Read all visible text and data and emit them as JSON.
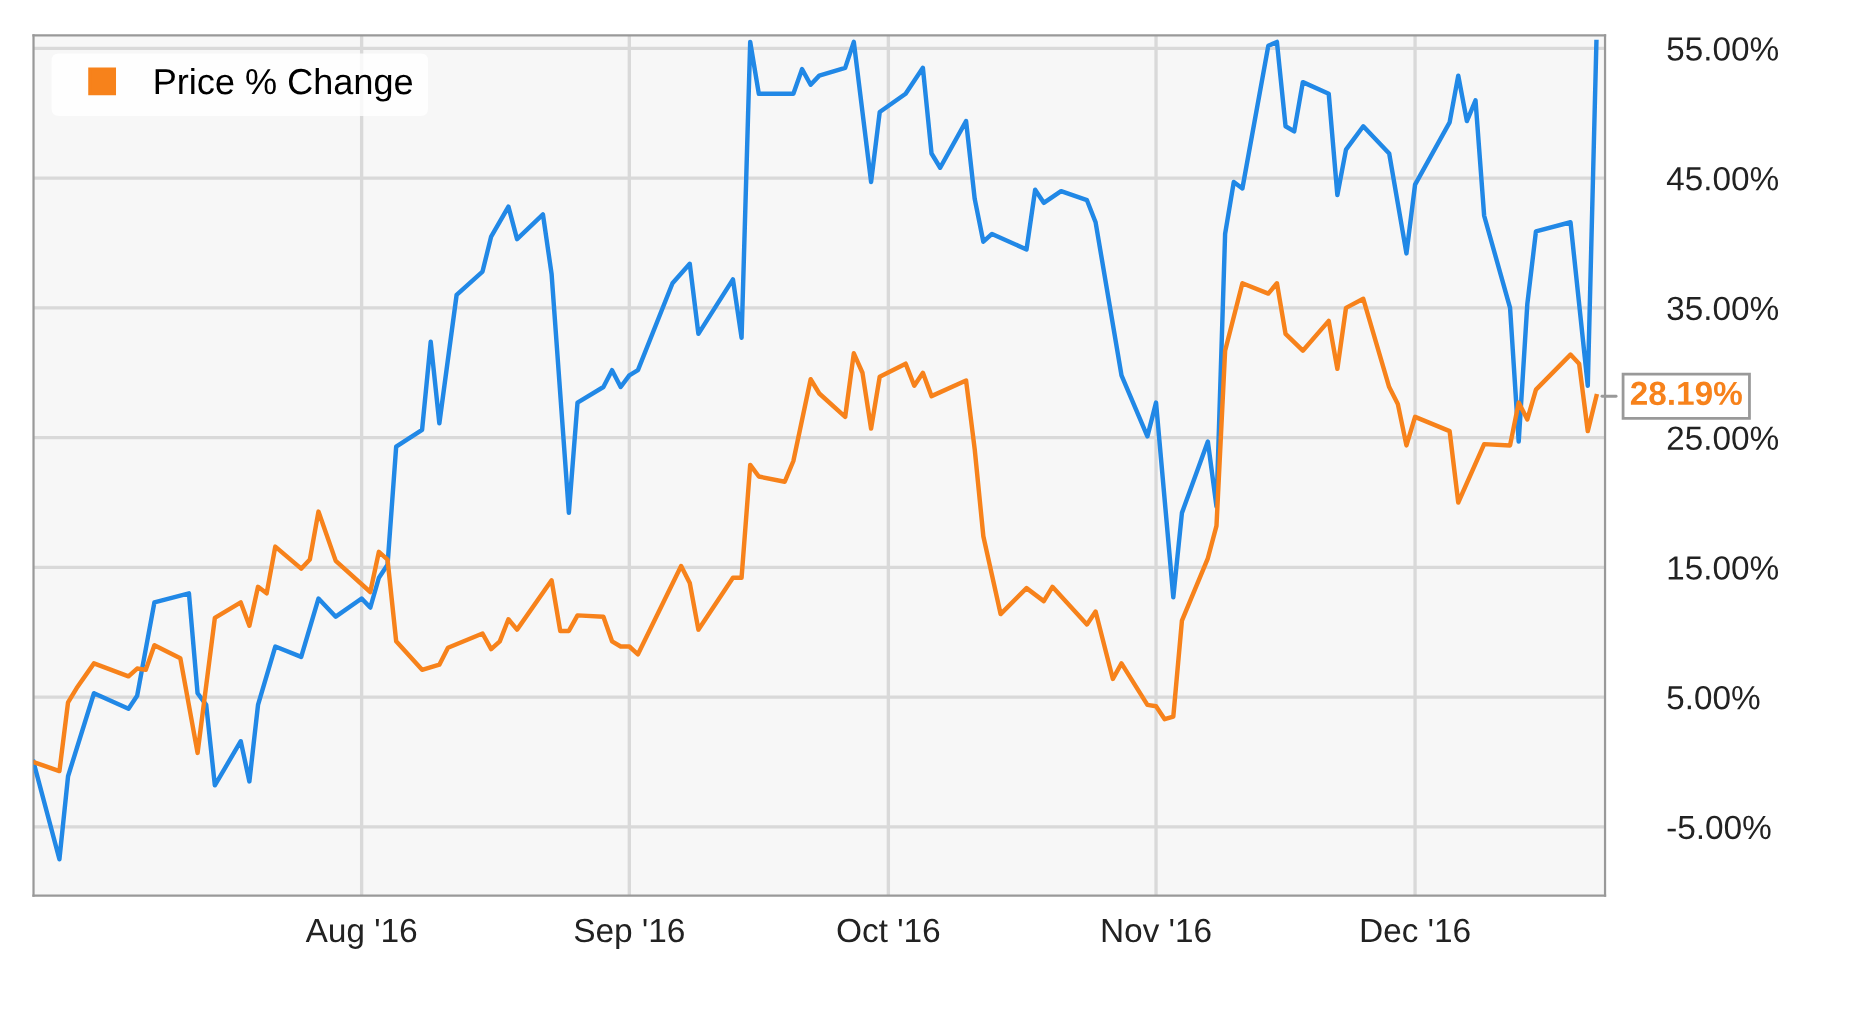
{
  "chart_data": {
    "type": "line",
    "series": [
      {
        "color": "#2188e6",
        "x": [
          "2016-06-24",
          "2016-06-27",
          "2016-06-28",
          "2016-07-01",
          "2016-07-05",
          "2016-07-06",
          "2016-07-08",
          "2016-07-12",
          "2016-07-13",
          "2016-07-14",
          "2016-07-15",
          "2016-07-18",
          "2016-07-19",
          "2016-07-20",
          "2016-07-22",
          "2016-07-25",
          "2016-07-27",
          "2016-07-29",
          "2016-08-01",
          "2016-08-02",
          "2016-08-03",
          "2016-08-04",
          "2016-08-05",
          "2016-08-08",
          "2016-08-09",
          "2016-08-10",
          "2016-08-12",
          "2016-08-15",
          "2016-08-16",
          "2016-08-18",
          "2016-08-19",
          "2016-08-22",
          "2016-08-23",
          "2016-08-25",
          "2016-08-26",
          "2016-08-29",
          "2016-08-30",
          "2016-08-31",
          "2016-09-01",
          "2016-09-02",
          "2016-09-06",
          "2016-09-08",
          "2016-09-09",
          "2016-09-13",
          "2016-09-14",
          "2016-09-15",
          "2016-09-16",
          "2016-09-20",
          "2016-09-21",
          "2016-09-22",
          "2016-09-23",
          "2016-09-26",
          "2016-09-27",
          "2016-09-29",
          "2016-09-30",
          "2016-10-03",
          "2016-10-05",
          "2016-10-06",
          "2016-10-07",
          "2016-10-10",
          "2016-10-11",
          "2016-10-12",
          "2016-10-13",
          "2016-10-17",
          "2016-10-18",
          "2016-10-19",
          "2016-10-21",
          "2016-10-24",
          "2016-10-25",
          "2016-10-28",
          "2016-10-31",
          "2016-11-01",
          "2016-11-03",
          "2016-11-04",
          "2016-11-07",
          "2016-11-08",
          "2016-11-09",
          "2016-11-10",
          "2016-11-11",
          "2016-11-14",
          "2016-11-15",
          "2016-11-16",
          "2016-11-17",
          "2016-11-18",
          "2016-11-21",
          "2016-11-22",
          "2016-11-23",
          "2016-11-25",
          "2016-11-28",
          "2016-11-30",
          "2016-12-01",
          "2016-12-05",
          "2016-12-06",
          "2016-12-07",
          "2016-12-08",
          "2016-12-09",
          "2016-12-12",
          "2016-12-13",
          "2016-12-14",
          "2016-12-15",
          "2016-12-19",
          "2016-12-21",
          "2016-12-22"
        ],
        "values": [
          0.0,
          -7.5,
          -1.1,
          5.3,
          4.1,
          5.1,
          12.3,
          13.0,
          5.3,
          4.4,
          -1.8,
          1.6,
          -1.5,
          4.4,
          8.9,
          8.1,
          12.6,
          11.2,
          12.6,
          11.9,
          14.2,
          15.2,
          24.3,
          25.6,
          32.4,
          26.1,
          36.0,
          37.8,
          40.5,
          42.8,
          40.3,
          42.2,
          37.6,
          19.2,
          27.7,
          28.9,
          30.2,
          28.9,
          29.8,
          30.2,
          36.9,
          38.4,
          33.0,
          37.2,
          32.7,
          55.5,
          51.5,
          51.5,
          53.4,
          52.2,
          52.9,
          53.5,
          55.5,
          44.7,
          50.1,
          51.5,
          53.5,
          46.9,
          45.8,
          49.4,
          43.4,
          40.1,
          40.7,
          39.5,
          44.1,
          43.1,
          44.0,
          43.3,
          41.6,
          29.8,
          25.1,
          27.7,
          12.7,
          19.2,
          24.7,
          19.7,
          40.7,
          44.7,
          44.2,
          55.2,
          55.5,
          49.0,
          48.6,
          52.4,
          51.5,
          43.7,
          47.2,
          49.0,
          46.9,
          39.2,
          44.5,
          49.3,
          52.9,
          49.4,
          51.0,
          42.1,
          35.0,
          24.7,
          35.3,
          40.9,
          41.6,
          29.0,
          55.5
        ]
      },
      {
        "name": "Price % Change",
        "color": "#f7821b",
        "x": [
          "2016-06-24",
          "2016-06-27",
          "2016-06-28",
          "2016-06-29",
          "2016-07-01",
          "2016-07-05",
          "2016-07-06",
          "2016-07-07",
          "2016-07-08",
          "2016-07-11",
          "2016-07-13",
          "2016-07-15",
          "2016-07-18",
          "2016-07-19",
          "2016-07-20",
          "2016-07-21",
          "2016-07-22",
          "2016-07-25",
          "2016-07-26",
          "2016-07-27",
          "2016-07-29",
          "2016-08-02",
          "2016-08-03",
          "2016-08-04",
          "2016-08-05",
          "2016-08-08",
          "2016-08-10",
          "2016-08-11",
          "2016-08-15",
          "2016-08-16",
          "2016-08-17",
          "2016-08-18",
          "2016-08-19",
          "2016-08-23",
          "2016-08-24",
          "2016-08-25",
          "2016-08-26",
          "2016-08-29",
          "2016-08-30",
          "2016-08-31",
          "2016-09-01",
          "2016-09-02",
          "2016-09-07",
          "2016-09-08",
          "2016-09-09",
          "2016-09-13",
          "2016-09-14",
          "2016-09-15",
          "2016-09-16",
          "2016-09-19",
          "2016-09-20",
          "2016-09-22",
          "2016-09-23",
          "2016-09-26",
          "2016-09-27",
          "2016-09-28",
          "2016-09-29",
          "2016-09-30",
          "2016-10-03",
          "2016-10-04",
          "2016-10-05",
          "2016-10-06",
          "2016-10-10",
          "2016-10-11",
          "2016-10-12",
          "2016-10-14",
          "2016-10-17",
          "2016-10-19",
          "2016-10-20",
          "2016-10-24",
          "2016-10-25",
          "2016-10-27",
          "2016-10-28",
          "2016-10-31",
          "2016-11-01",
          "2016-11-02",
          "2016-11-03",
          "2016-11-04",
          "2016-11-07",
          "2016-11-08",
          "2016-11-09",
          "2016-11-11",
          "2016-11-14",
          "2016-11-15",
          "2016-11-16",
          "2016-11-18",
          "2016-11-21",
          "2016-11-22",
          "2016-11-23",
          "2016-11-25",
          "2016-11-28",
          "2016-11-29",
          "2016-11-30",
          "2016-12-01",
          "2016-12-05",
          "2016-12-06",
          "2016-12-09",
          "2016-12-12",
          "2016-12-13",
          "2016-12-14",
          "2016-12-15",
          "2016-12-19",
          "2016-12-20",
          "2016-12-21",
          "2016-12-22"
        ],
        "values": [
          0.0,
          -0.7,
          4.6,
          5.7,
          7.6,
          6.6,
          7.2,
          7.1,
          9.0,
          8.0,
          0.7,
          11.1,
          12.3,
          10.5,
          13.5,
          13.0,
          16.6,
          14.9,
          15.6,
          19.3,
          15.5,
          13.1,
          16.2,
          15.6,
          9.3,
          7.1,
          7.5,
          8.8,
          9.9,
          8.7,
          9.3,
          11.0,
          10.2,
          14.0,
          10.1,
          10.1,
          11.3,
          11.2,
          9.3,
          8.9,
          8.9,
          8.3,
          15.1,
          13.8,
          10.2,
          14.2,
          14.2,
          22.9,
          22.0,
          21.6,
          23.2,
          29.5,
          28.4,
          26.6,
          31.5,
          30.0,
          25.7,
          29.7,
          30.7,
          29.0,
          30.0,
          28.2,
          29.4,
          24.1,
          17.4,
          11.4,
          13.4,
          12.4,
          13.5,
          10.6,
          11.6,
          6.4,
          7.6,
          4.4,
          4.3,
          3.3,
          3.5,
          10.9,
          15.7,
          18.2,
          31.7,
          36.9,
          36.1,
          36.9,
          33.0,
          31.7,
          34.0,
          30.3,
          35.0,
          35.7,
          28.9,
          27.6,
          24.4,
          26.6,
          25.5,
          20.0,
          24.5,
          24.4,
          27.7,
          26.4,
          28.7,
          31.4,
          30.7,
          25.5,
          28.19
        ]
      }
    ],
    "xlim": [
      "2016-06-24",
      "2016-12-23"
    ],
    "xticks": [
      {
        "value": "2016-08-01",
        "label": "Aug '16"
      },
      {
        "value": "2016-09-01",
        "label": "Sep '16"
      },
      {
        "value": "2016-10-01",
        "label": "Oct '16"
      },
      {
        "value": "2016-11-01",
        "label": "Nov '16"
      },
      {
        "value": "2016-12-01",
        "label": "Dec '16"
      }
    ],
    "ylim": [
      -10.3,
      56
    ],
    "yticks": [
      {
        "value": -5,
        "label": "-5.00%"
      },
      {
        "value": 5,
        "label": "5.00%"
      },
      {
        "value": 15,
        "label": "15.00%"
      },
      {
        "value": 25,
        "label": "25.00%"
      },
      {
        "value": 35,
        "label": "35.00%"
      },
      {
        "value": 45,
        "label": "45.00%"
      },
      {
        "value": 55,
        "label": "55.00%"
      }
    ],
    "annotations": [
      {
        "text": "28.19%",
        "x": "2016-12-22",
        "y": 28.19
      }
    ],
    "grid": true,
    "legend": "top left",
    "marker": "none",
    "line_style": "solid"
  }
}
